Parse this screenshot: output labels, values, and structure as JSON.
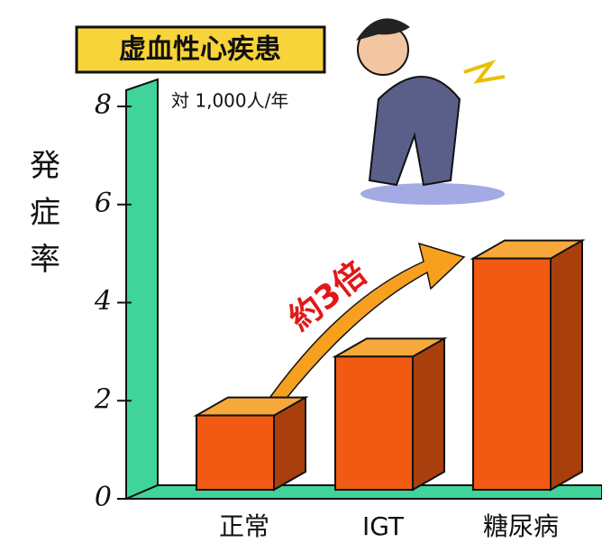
{
  "chart_data": {
    "type": "bar",
    "title": "虚血性心疾患",
    "subtitle": "対 1,000人/年",
    "y_label": "発症率",
    "annotation": "約3倍",
    "categories": [
      "正常",
      "IGT",
      "糖尿病"
    ],
    "values": [
      1.7,
      2.9,
      4.9
    ],
    "color": "#f05a12",
    "ylim": [
      0,
      8
    ],
    "yticks": [
      0,
      2,
      4,
      6,
      8
    ]
  }
}
